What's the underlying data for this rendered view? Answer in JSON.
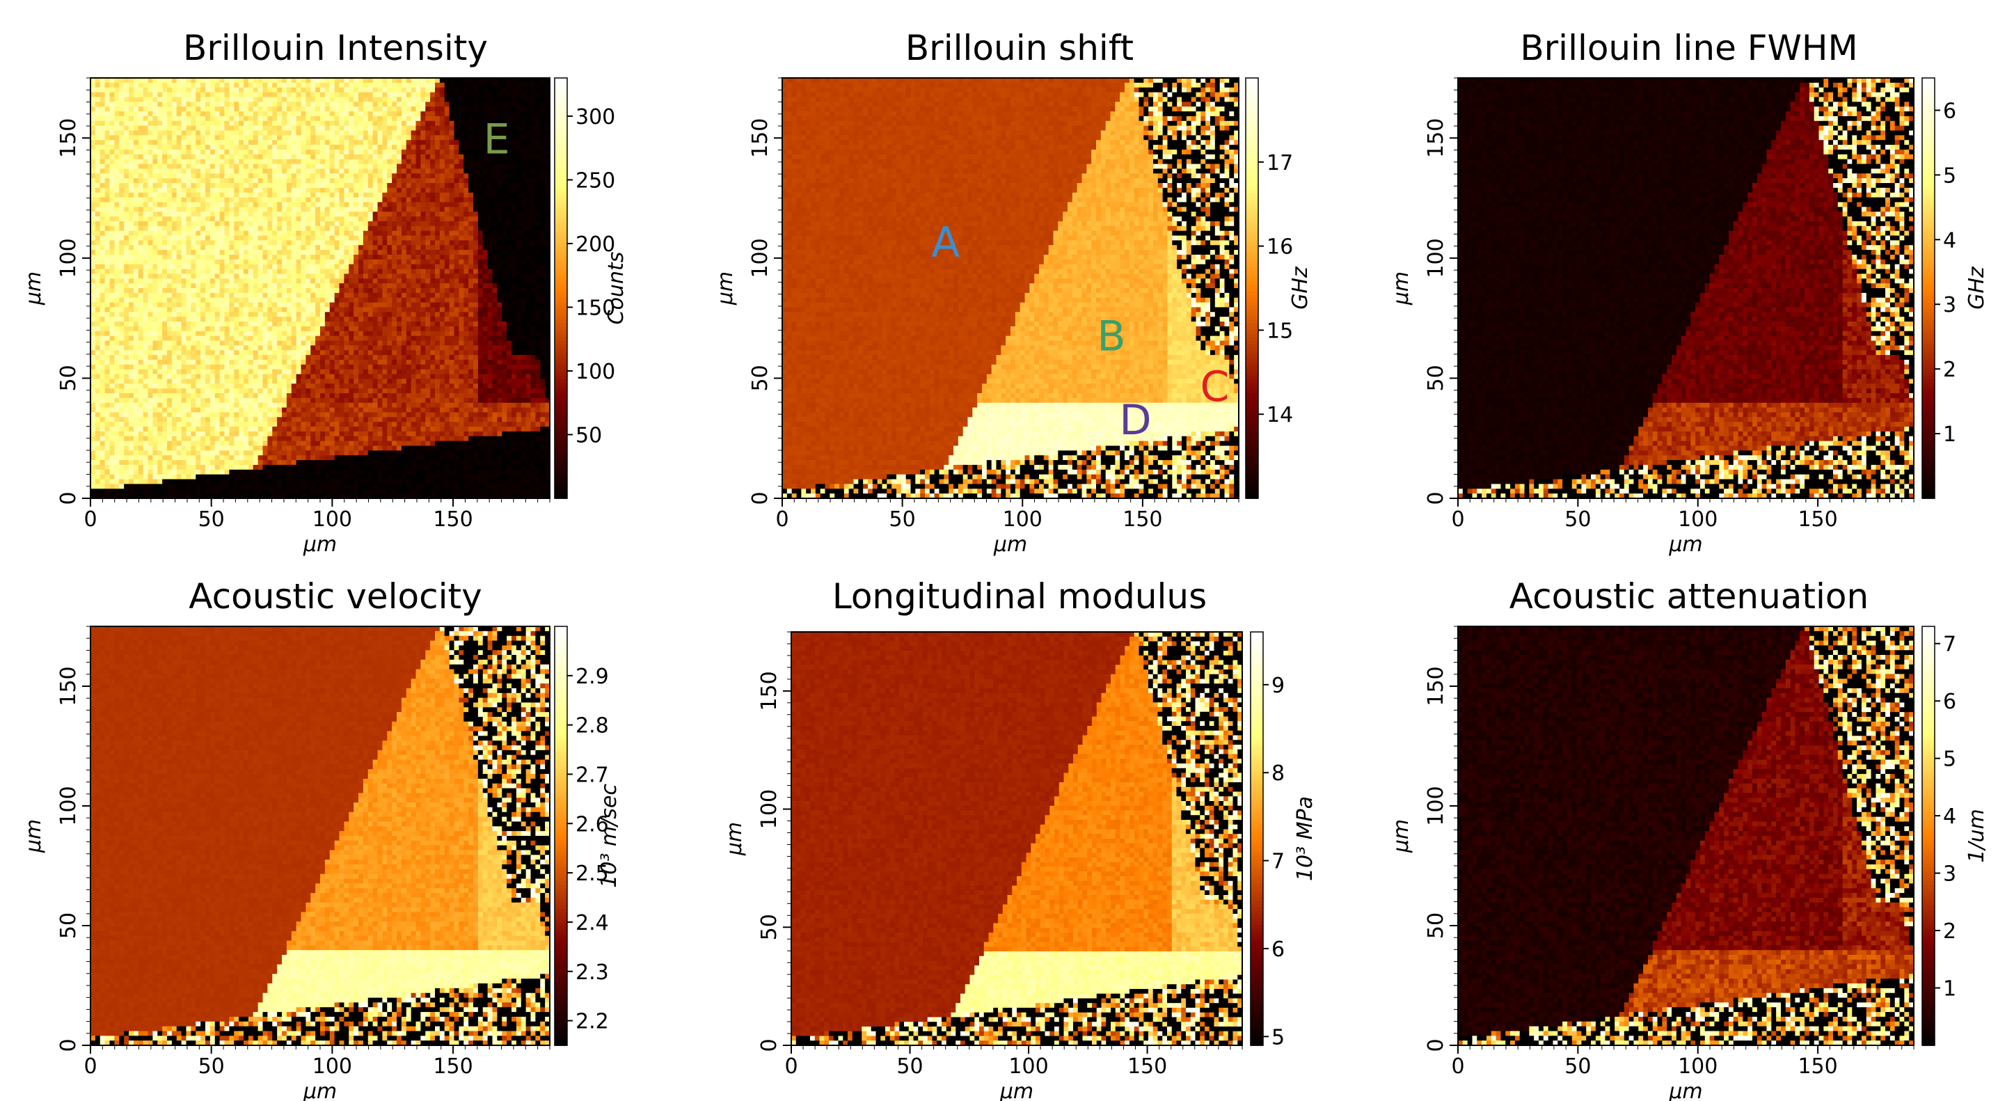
{
  "figure_colormap": "afmhot",
  "chart_data": [
    {
      "type": "heatmap",
      "title": "Brillouin Intensity",
      "xlabel": "μm",
      "ylabel": "μm",
      "x_range": [
        0,
        190
      ],
      "y_range": [
        0,
        175
      ],
      "x_ticks": [
        0,
        50,
        100,
        150
      ],
      "y_ticks": [
        0,
        50,
        100,
        150
      ],
      "colorbar": {
        "label": "Counts",
        "range": [
          0,
          330
        ],
        "ticks": [
          50,
          100,
          150,
          200,
          250,
          300
        ]
      },
      "regions": [
        {
          "name": "A",
          "value": 250,
          "noise": 35
        },
        {
          "name": "B",
          "value": 110,
          "noise": 20
        },
        {
          "name": "C",
          "value": 70,
          "noise": 20
        },
        {
          "name": "D",
          "value": 115,
          "noise": 20
        },
        {
          "name": "E",
          "value": 5,
          "noise": 5
        }
      ],
      "annotations": [
        {
          "text": "E",
          "x": 168,
          "y": 150,
          "color": "#7a9a4a"
        }
      ]
    },
    {
      "type": "heatmap",
      "title": "Brillouin shift",
      "xlabel": "μm",
      "ylabel": "μm",
      "x_range": [
        0,
        190
      ],
      "y_range": [
        0,
        175
      ],
      "x_ticks": [
        0,
        50,
        100,
        150
      ],
      "y_ticks": [
        0,
        50,
        100,
        150
      ],
      "colorbar": {
        "label": "GHz",
        "range": [
          13,
          18
        ],
        "ticks": [
          14,
          15,
          16,
          17
        ]
      },
      "regions": [
        {
          "name": "A",
          "value": 14.9,
          "noise": 0.06
        },
        {
          "name": "B",
          "value": 16.0,
          "noise": 0.15
        },
        {
          "name": "C",
          "value": 16.4,
          "noise": 0.15
        },
        {
          "name": "D",
          "value": 17.4,
          "noise": 0.15
        },
        {
          "name": "E",
          "value": "noise"
        }
      ],
      "annotations": [
        {
          "text": "A",
          "x": 68,
          "y": 107,
          "color": "#3a8fd0"
        },
        {
          "text": "B",
          "x": 137,
          "y": 68,
          "color": "#3aa06a"
        },
        {
          "text": "C",
          "x": 180,
          "y": 47,
          "color": "#e02020"
        },
        {
          "text": "D",
          "x": 147,
          "y": 33,
          "color": "#5a3a9a"
        }
      ]
    },
    {
      "type": "heatmap",
      "title": "Brillouin line FWHM",
      "xlabel": "μm",
      "ylabel": "μm",
      "x_range": [
        0,
        190
      ],
      "y_range": [
        0,
        175
      ],
      "x_ticks": [
        0,
        50,
        100,
        150
      ],
      "y_ticks": [
        0,
        50,
        100,
        150
      ],
      "colorbar": {
        "label": "GHz",
        "range": [
          0,
          6.5
        ],
        "ticks": [
          1,
          2,
          3,
          4,
          5,
          6
        ]
      },
      "regions": [
        {
          "name": "A",
          "value": 0.3,
          "noise": 0.08
        },
        {
          "name": "B",
          "value": 1.4,
          "noise": 0.3
        },
        {
          "name": "C",
          "value": 1.9,
          "noise": 0.4
        },
        {
          "name": "D",
          "value": 2.3,
          "noise": 0.4
        },
        {
          "name": "E",
          "value": "noise"
        }
      ]
    },
    {
      "type": "heatmap",
      "title": "Acoustic velocity",
      "xlabel": "μm",
      "ylabel": "μm",
      "x_range": [
        0,
        190
      ],
      "y_range": [
        0,
        175
      ],
      "x_ticks": [
        0,
        50,
        100,
        150
      ],
      "y_ticks": [
        0,
        50,
        100,
        150
      ],
      "colorbar": {
        "label": "10³ m/sec",
        "range": [
          2.15,
          3.0
        ],
        "ticks": [
          2.2,
          2.3,
          2.4,
          2.5,
          2.6,
          2.7,
          2.8,
          2.9
        ]
      },
      "regions": [
        {
          "name": "A",
          "value": 2.45,
          "noise": 0.006
        },
        {
          "name": "B",
          "value": 2.62,
          "noise": 0.03
        },
        {
          "name": "C",
          "value": 2.7,
          "noise": 0.03
        },
        {
          "name": "D",
          "value": 2.85,
          "noise": 0.03
        },
        {
          "name": "E",
          "value": "noise"
        }
      ]
    },
    {
      "type": "heatmap",
      "title": "Longitudinal modulus",
      "xlabel": "μm",
      "ylabel": "μm",
      "x_range": [
        0,
        190
      ],
      "y_range": [
        0,
        175
      ],
      "x_ticks": [
        0,
        50,
        100,
        150
      ],
      "y_ticks": [
        0,
        50,
        100,
        150
      ],
      "colorbar": {
        "label": "10³ MPa",
        "range": [
          4.9,
          9.6
        ],
        "ticks": [
          5,
          6,
          7,
          8,
          9
        ]
      },
      "regions": [
        {
          "name": "A",
          "value": 6.4,
          "noise": 0.06
        },
        {
          "name": "B",
          "value": 7.3,
          "noise": 0.15
        },
        {
          "name": "C",
          "value": 7.9,
          "noise": 0.2
        },
        {
          "name": "D",
          "value": 8.7,
          "noise": 0.2
        },
        {
          "name": "E",
          "value": "noise"
        }
      ]
    },
    {
      "type": "heatmap",
      "title": "Acoustic attenuation",
      "xlabel": "μm",
      "ylabel": "μm",
      "x_range": [
        0,
        190
      ],
      "y_range": [
        0,
        175
      ],
      "x_ticks": [
        0,
        50,
        100,
        150
      ],
      "y_ticks": [
        0,
        50,
        100,
        150
      ],
      "colorbar": {
        "label": "1/um",
        "range": [
          0,
          7.3
        ],
        "ticks": [
          1,
          2,
          3,
          4,
          5,
          6,
          7
        ]
      },
      "regions": [
        {
          "name": "A",
          "value": 0.5,
          "noise": 0.2
        },
        {
          "name": "B",
          "value": 1.8,
          "noise": 0.4
        },
        {
          "name": "C",
          "value": 2.3,
          "noise": 0.5
        },
        {
          "name": "D",
          "value": 2.8,
          "noise": 0.5
        },
        {
          "name": "E",
          "value": "noise"
        }
      ]
    }
  ]
}
